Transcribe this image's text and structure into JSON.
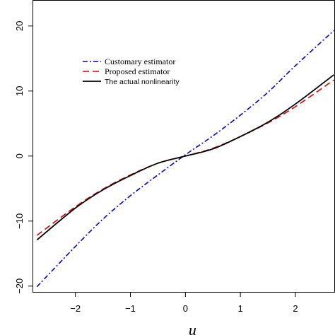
{
  "chart_data": {
    "type": "line",
    "title": "",
    "xlabel": "u",
    "ylabel": "",
    "xlim": [
      -2.78,
      2.72
    ],
    "ylim": [
      -21.0,
      24.0
    ],
    "x_ticks": [
      -2,
      -1,
      0,
      1,
      2
    ],
    "y_ticks": [
      -20,
      -10,
      0,
      10,
      20
    ],
    "x_tick_labels": [
      "−2",
      "−1",
      "0",
      "1",
      "2"
    ],
    "y_tick_labels": [
      "−20",
      "−10",
      "0",
      "10",
      "20"
    ],
    "grid": false,
    "legend_position": "upper-left",
    "series": [
      {
        "name": "Customary estimator",
        "color": "#0000cc",
        "style": "dash-dot",
        "x": [
          -2.7,
          -2.0,
          -1.5,
          -1.0,
          -0.5,
          0.0,
          0.5,
          1.0,
          1.5,
          2.0,
          2.7
        ],
        "y": [
          -20.1,
          -13.9,
          -9.7,
          -6.1,
          -2.9,
          0.2,
          3.1,
          6.3,
          9.8,
          13.9,
          19.3
        ]
      },
      {
        "name": "Proposed estimator",
        "color": "#dd0000",
        "style": "dashed",
        "x": [
          -2.7,
          -2.0,
          -1.5,
          -1.0,
          -0.5,
          0.0,
          0.5,
          1.0,
          1.5,
          2.0,
          2.7
        ],
        "y": [
          -12.2,
          -7.8,
          -5.1,
          -2.9,
          -1.1,
          0.0,
          1.2,
          3.0,
          5.1,
          7.6,
          11.7
        ]
      },
      {
        "name": "The actual nonlinearity",
        "color": "#000000",
        "style": "solid",
        "x": [
          -2.7,
          -2.0,
          -1.5,
          -1.0,
          -0.5,
          0.0,
          0.5,
          1.0,
          1.5,
          2.0,
          2.7
        ],
        "y": [
          -12.9,
          -8.0,
          -5.2,
          -3.0,
          -1.1,
          0.0,
          1.1,
          3.0,
          5.2,
          8.0,
          12.5
        ]
      }
    ]
  }
}
